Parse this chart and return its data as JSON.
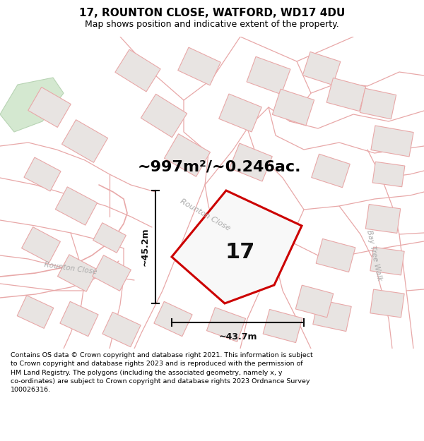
{
  "title": "17, ROUNTON CLOSE, WATFORD, WD17 4DU",
  "subtitle": "Map shows position and indicative extent of the property.",
  "area_text": "~997m²/~0.246ac.",
  "label_17": "17",
  "dim_width": "~43.7m",
  "dim_height": "~45.2m",
  "street_rounton1": "Rounton Close",
  "street_rounton2": "Rounton Close",
  "street_bay": "Bay Tree Walk",
  "footer_lines": [
    "Contains OS data © Crown copyright and database right 2021. This information is subject",
    "to Crown copyright and database rights 2023 and is reproduced with the permission of",
    "HM Land Registry. The polygons (including the associated geometry, namely x, y",
    "co-ordinates) are subject to Crown copyright and database rights 2023 Ordnance Survey",
    "100026316."
  ],
  "map_bg": "#f5f0ee",
  "building_face": "#e8e4e2",
  "building_edge": "#e8a8a8",
  "plot_face": "#f8f8f8",
  "plot_edge": "#cc0000",
  "green_face": "#d4e8d0",
  "green_edge": "#b8d4b4",
  "road_outline": "#e0d0cc",
  "dim_color": "#111111",
  "label_color": "#111111",
  "street_color": "#aaaaaa",
  "title_size": 11,
  "subtitle_size": 9,
  "area_size": 16,
  "label_size": 22,
  "dim_size": 9,
  "street_size": 8,
  "footer_size": 6.8
}
